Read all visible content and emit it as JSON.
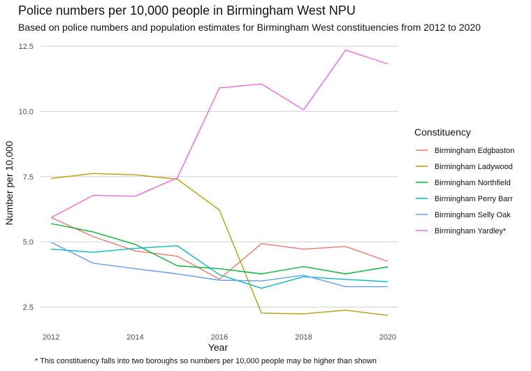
{
  "chart_data": {
    "type": "line",
    "title": "Police numbers per 10,000 people in Birmingham West NPU",
    "subtitle": "Based on police numbers and population estimates for Birmingham West constituencies from 2012 to 2020",
    "xlabel": "Year",
    "ylabel": "Number per 10,000",
    "caption": "* This constituency falls into two boroughs so numbers per 10,000 people may be higher than shown",
    "legend_title": "Constituency",
    "legend_position": "right",
    "grid": "horizontal major only",
    "x": [
      2012,
      2013,
      2014,
      2015,
      2016,
      2017,
      2018,
      2019,
      2020
    ],
    "xlim": [
      2011.75,
      2020.25
    ],
    "ylim": [
      1.95,
      12.85
    ],
    "x_ticks": [
      2012,
      2014,
      2016,
      2018,
      2020
    ],
    "y_ticks": [
      2.5,
      5.0,
      7.5,
      10.0,
      12.5
    ],
    "y_tick_labels": [
      "2.5",
      "5.0",
      "7.5",
      "10.0",
      "12.5"
    ],
    "series": [
      {
        "name": "Birmingham Edgbaston",
        "color": "#F8766D",
        "values": [
          5.93,
          5.2,
          4.65,
          4.45,
          3.57,
          4.93,
          4.72,
          4.82,
          4.25
        ]
      },
      {
        "name": "Birmingham Ladywood",
        "color": "#B79F00",
        "values": [
          7.43,
          7.62,
          7.57,
          7.4,
          6.22,
          2.27,
          2.24,
          2.38,
          2.18
        ]
      },
      {
        "name": "Birmingham Northfield",
        "color": "#00BA38",
        "values": [
          5.7,
          5.38,
          4.9,
          4.08,
          3.97,
          3.77,
          4.05,
          3.77,
          4.04
        ]
      },
      {
        "name": "Birmingham Perry Barr",
        "color": "#00BFC4",
        "values": [
          4.72,
          4.6,
          4.75,
          4.85,
          3.74,
          3.22,
          3.66,
          3.56,
          3.47
        ]
      },
      {
        "name": "Birmingham Selly Oak",
        "color": "#619CFF",
        "values": [
          4.98,
          4.18,
          3.97,
          3.77,
          3.53,
          3.5,
          3.72,
          3.28,
          3.28
        ]
      },
      {
        "name": "Birmingham Yardley*",
        "color": "#F564E3",
        "values": [
          5.93,
          6.78,
          6.75,
          7.45,
          10.9,
          11.05,
          10.06,
          12.35,
          11.82
        ]
      }
    ]
  }
}
